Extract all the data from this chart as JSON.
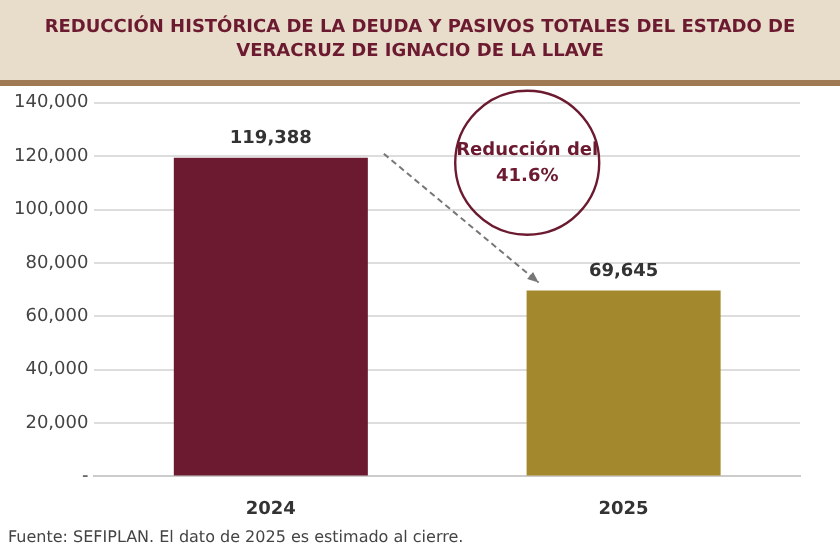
{
  "chart_data": {
    "type": "bar",
    "title": "REDUCCIÓN HISTÓRICA DE LA DEUDA Y PASIVOS TOTALES DEL ESTADO DE VERACRUZ DE IGNACIO DE LA LLAVE",
    "categories": [
      "2024",
      "2025"
    ],
    "values": [
      119388,
      69645
    ],
    "colors": [
      "#6b1a30",
      "#a3882e"
    ],
    "value_labels": [
      "119,388",
      "69,645"
    ],
    "ylim": [
      0,
      140000
    ],
    "yticks": [
      {
        "value": 0,
        "label": "-"
      },
      {
        "value": 20000,
        "label": "20,000"
      },
      {
        "value": 40000,
        "label": "40,000"
      },
      {
        "value": 60000,
        "label": "60,000"
      },
      {
        "value": 80000,
        "label": "80,000"
      },
      {
        "value": 100000,
        "label": "100,000"
      },
      {
        "value": 120000,
        "label": "120,000"
      },
      {
        "value": 140000,
        "label": "140,000"
      }
    ],
    "grid": "y",
    "annotations": [
      "Reducción del 41.6%",
      "Fuente: SEFIPLAN. El dato de 2025 es estimado al cierre."
    ]
  }
}
